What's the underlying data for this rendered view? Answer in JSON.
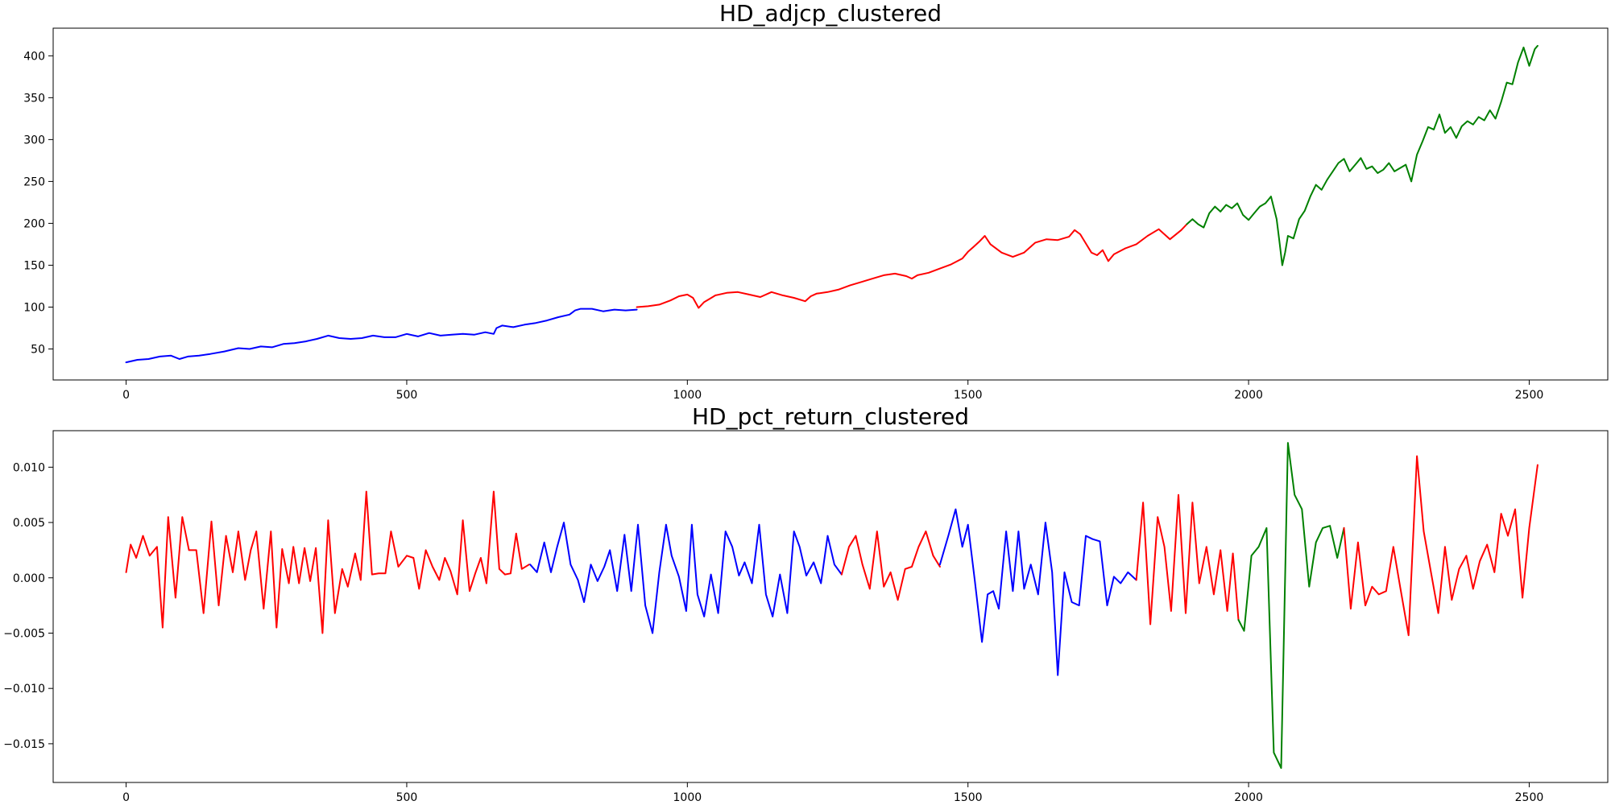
{
  "chart_data": [
    {
      "type": "line",
      "title": "HD_adjcp_clustered",
      "xlabel": "",
      "ylabel": "",
      "xlim": [
        -130,
        2640
      ],
      "ylim": [
        13,
        433
      ],
      "x_ticks": [
        0,
        500,
        1000,
        1500,
        2000,
        2500
      ],
      "y_ticks": [
        50,
        100,
        150,
        200,
        250,
        300,
        350,
        400
      ],
      "grid": false,
      "legend": "none",
      "series": [
        {
          "color": "#0000ff",
          "x": [
            0,
            20,
            40,
            60,
            80,
            95,
            110,
            130,
            150,
            175,
            200,
            220,
            240,
            260,
            280,
            300,
            320,
            340,
            360,
            380,
            400,
            420,
            440,
            460,
            480,
            500,
            520,
            540,
            560,
            580,
            600,
            620,
            640,
            655,
            660,
            670,
            690,
            710,
            730,
            750,
            770,
            790,
            800,
            810,
            830,
            850,
            870,
            890,
            910
          ],
          "y": [
            34,
            37,
            38,
            41,
            42,
            38,
            41,
            42,
            44,
            47,
            51,
            50,
            53,
            52,
            56,
            57,
            59,
            62,
            66,
            63,
            62,
            63,
            66,
            64,
            64,
            68,
            65,
            69,
            66,
            67,
            68,
            67,
            70,
            68,
            75,
            78,
            76,
            79,
            81,
            84,
            88,
            91,
            96,
            98,
            98,
            95,
            97,
            96,
            97
          ]
        },
        {
          "color": "#ff0000",
          "x": [
            910,
            930,
            950,
            970,
            985,
            1000,
            1010,
            1020,
            1030,
            1040,
            1050,
            1070,
            1090,
            1110,
            1130,
            1150,
            1170,
            1190,
            1210,
            1220,
            1230,
            1250,
            1270,
            1290,
            1310,
            1330,
            1350,
            1370,
            1390,
            1400,
            1410,
            1430,
            1450,
            1470,
            1490,
            1500,
            1510,
            1520,
            1530,
            1540,
            1560,
            1580,
            1600,
            1620,
            1640,
            1660,
            1680,
            1690,
            1700,
            1710,
            1720,
            1730,
            1740,
            1750,
            1760,
            1780,
            1800,
            1820,
            1840,
            1860,
            1880,
            1890
          ],
          "y": [
            100,
            101,
            103,
            108,
            113,
            115,
            111,
            99,
            106,
            110,
            114,
            117,
            118,
            115,
            112,
            118,
            114,
            111,
            107,
            113,
            116,
            118,
            121,
            126,
            130,
            134,
            138,
            140,
            137,
            134,
            138,
            141,
            146,
            151,
            158,
            166,
            172,
            178,
            185,
            175,
            165,
            160,
            165,
            177,
            181,
            180,
            184,
            192,
            187,
            176,
            165,
            162,
            168,
            155,
            163,
            170,
            175,
            185,
            193,
            181,
            192,
            199
          ]
        },
        {
          "color": "#008000",
          "x": [
            1890,
            1900,
            1910,
            1920,
            1930,
            1940,
            1950,
            1960,
            1970,
            1980,
            1990,
            2000,
            2010,
            2020,
            2030,
            2040,
            2050,
            2055,
            2060,
            2065,
            2070,
            2080,
            2090,
            2100,
            2110,
            2120,
            2130,
            2140,
            2150,
            2160,
            2170,
            2180,
            2190,
            2200,
            2210,
            2220,
            2230,
            2240,
            2250,
            2260,
            2270,
            2280,
            2290,
            2300,
            2310,
            2320,
            2330,
            2340,
            2350,
            2360,
            2370,
            2380,
            2390,
            2400,
            2410,
            2420,
            2430,
            2440,
            2450,
            2460,
            2470,
            2480,
            2490,
            2500,
            2510,
            2515
          ],
          "y": [
            199,
            205,
            199,
            195,
            212,
            220,
            214,
            222,
            218,
            224,
            210,
            204,
            212,
            220,
            224,
            232,
            205,
            178,
            150,
            165,
            185,
            182,
            205,
            215,
            232,
            246,
            240,
            252,
            262,
            272,
            277,
            262,
            270,
            278,
            265,
            268,
            260,
            264,
            272,
            262,
            266,
            270,
            250,
            282,
            298,
            315,
            312,
            330,
            308,
            315,
            302,
            316,
            322,
            318,
            327,
            323,
            335,
            325,
            345,
            368,
            366,
            392,
            410,
            388,
            408,
            412
          ]
        }
      ]
    },
    {
      "type": "line",
      "title": "HD_pct_return_clustered",
      "xlabel": "",
      "ylabel": "",
      "xlim": [
        -130,
        2640
      ],
      "ylim": [
        -0.0185,
        0.0133
      ],
      "x_ticks": [
        0,
        500,
        1000,
        1500,
        2000,
        2500
      ],
      "y_ticks": [
        0.01,
        0.005,
        0.0,
        -0.005,
        -0.01,
        -0.015
      ],
      "y_tick_labels": [
        "0.010",
        "0.005",
        "0.000",
        "−0.005",
        "−0.010",
        "−0.015"
      ],
      "grid": false,
      "legend": "none",
      "series": [
        {
          "color": "#ff0000",
          "x": [
            0,
            8,
            18,
            30,
            42,
            55,
            65,
            75,
            88,
            100,
            112,
            125,
            138,
            152,
            165,
            178,
            190,
            200,
            212,
            222,
            232,
            245,
            258,
            268,
            278,
            290,
            298,
            308,
            318,
            328,
            338,
            350,
            360,
            372,
            385,
            395,
            408,
            418,
            428,
            438,
            450,
            462,
            472,
            485,
            500,
            512,
            522,
            534,
            546,
            558,
            568,
            578,
            590,
            600,
            612,
            622,
            632,
            642,
            655,
            665,
            675,
            685,
            695,
            705,
            718
          ],
          "y": [
            0.0005,
            0.003,
            0.0018,
            0.0038,
            0.002,
            0.0028,
            -0.0045,
            0.0055,
            -0.0018,
            0.0055,
            0.0025,
            0.0025,
            -0.0032,
            0.0051,
            -0.0025,
            0.0038,
            0.0005,
            0.0042,
            -0.0002,
            0.0025,
            0.0042,
            -0.0028,
            0.0042,
            -0.0045,
            0.0026,
            -0.0005,
            0.0028,
            -0.0005,
            0.0027,
            -0.0003,
            0.0027,
            -0.005,
            0.0052,
            -0.0032,
            0.0008,
            -0.0008,
            0.0022,
            -0.0002,
            0.0078,
            0.0003,
            0.0004,
            0.0004,
            0.0042,
            0.001,
            0.002,
            0.0018,
            -0.001,
            0.0025,
            0.001,
            -0.0002,
            0.0018,
            0.0006,
            -0.0015,
            0.0052,
            -0.0012,
            0.0004,
            0.0018,
            -0.0005,
            0.0078,
            0.0008,
            0.0003,
            0.0004,
            0.004,
            0.0008,
            0.0012
          ]
        },
        {
          "color": "#0000ff",
          "x": [
            720,
            732,
            745,
            757,
            768,
            780,
            792,
            805,
            816,
            828,
            840,
            852,
            862,
            875,
            888,
            900,
            912,
            925,
            938,
            950,
            962,
            972,
            985,
            998,
            1008,
            1018,
            1030,
            1042,
            1055,
            1068,
            1080,
            1092,
            1102,
            1115,
            1128,
            1140,
            1152,
            1165,
            1178,
            1190,
            1200,
            1212,
            1225,
            1238,
            1250,
            1262,
            1275
          ],
          "y": [
            0.0012,
            0.0005,
            0.0032,
            0.0005,
            0.0028,
            0.005,
            0.0012,
            -0.0002,
            -0.0022,
            0.0012,
            -0.0003,
            0.001,
            0.0025,
            -0.0012,
            0.0039,
            -0.0012,
            0.0048,
            -0.0025,
            -0.005,
            0.0005,
            0.0048,
            0.002,
            0.0001,
            -0.003,
            0.0048,
            -0.0015,
            -0.0035,
            0.0003,
            -0.0032,
            0.0042,
            0.0028,
            0.0002,
            0.0014,
            -0.0005,
            0.0048,
            -0.0015,
            -0.0035,
            0.0003,
            -0.0032,
            0.0042,
            0.0028,
            0.0002,
            0.0014,
            -0.0005,
            0.0038,
            0.0012,
            0.0003
          ]
        },
        {
          "color": "#ff0000",
          "x": [
            1275,
            1288,
            1300,
            1312,
            1325,
            1338,
            1350,
            1362,
            1375,
            1388,
            1400,
            1412,
            1425,
            1438,
            1450
          ],
          "y": [
            0.0003,
            0.0028,
            0.0038,
            0.0012,
            -0.001,
            0.0042,
            -0.0008,
            0.0005,
            -0.002,
            0.0008,
            0.001,
            0.0028,
            0.0042,
            0.002,
            0.001
          ]
        },
        {
          "color": "#0000ff",
          "x": [
            1450,
            1465,
            1478,
            1490,
            1500,
            1512,
            1525,
            1535,
            1545,
            1555,
            1568,
            1580,
            1590,
            1600,
            1612,
            1625,
            1638,
            1650,
            1660,
            1672,
            1685,
            1698,
            1710,
            1722,
            1735,
            1748,
            1760,
            1772,
            1785,
            1800
          ],
          "y": [
            0.0012,
            0.0038,
            0.0062,
            0.0028,
            0.0048,
            -0.0002,
            -0.0058,
            -0.0015,
            -0.0012,
            -0.0028,
            0.0042,
            -0.0012,
            0.0042,
            -0.001,
            0.0012,
            -0.0015,
            0.005,
            0.0005,
            -0.0088,
            0.0005,
            -0.0022,
            -0.0025,
            0.0038,
            0.0035,
            0.0033,
            -0.0025,
            0.0001,
            -0.0005,
            0.0005,
            -0.0002
          ]
        },
        {
          "color": "#ff0000",
          "x": [
            1800,
            1812,
            1825,
            1838,
            1850,
            1862,
            1875,
            1888,
            1900,
            1912,
            1925,
            1938,
            1950,
            1962,
            1972,
            1982
          ],
          "y": [
            -0.0002,
            0.0068,
            -0.0042,
            0.0055,
            0.0028,
            -0.003,
            0.0075,
            -0.0032,
            0.0068,
            -0.0005,
            0.0028,
            -0.0015,
            0.0025,
            -0.003,
            0.0022,
            -0.0038
          ]
        },
        {
          "color": "#008000",
          "x": [
            1982,
            1992,
            2005,
            2018,
            2032,
            2045,
            2058,
            2070,
            2082,
            2095,
            2108,
            2120,
            2132,
            2145,
            2158,
            2170
          ],
          "y": [
            -0.0038,
            -0.0048,
            0.002,
            0.0028,
            0.0045,
            -0.0158,
            -0.0172,
            0.0122,
            0.0075,
            0.0062,
            -0.0008,
            0.0032,
            0.0045,
            0.0047,
            0.0018,
            0.0045
          ]
        },
        {
          "color": "#ff0000",
          "x": [
            2170,
            2182,
            2195,
            2208,
            2220,
            2232,
            2245,
            2258,
            2270,
            2285,
            2300,
            2312,
            2325,
            2338,
            2350,
            2362,
            2375,
            2388,
            2400,
            2412,
            2425,
            2438,
            2450,
            2462,
            2475,
            2488,
            2500,
            2515
          ],
          "y": [
            0.0045,
            -0.0028,
            0.0032,
            -0.0025,
            -0.0008,
            -0.0015,
            -0.0012,
            0.0028,
            -0.0008,
            -0.0052,
            0.011,
            0.0042,
            0.0005,
            -0.0032,
            0.0028,
            -0.002,
            0.0008,
            0.002,
            -0.001,
            0.0015,
            0.003,
            0.0005,
            0.0058,
            0.0038,
            0.0062,
            -0.0018,
            0.0045,
            0.0102
          ]
        }
      ]
    }
  ]
}
